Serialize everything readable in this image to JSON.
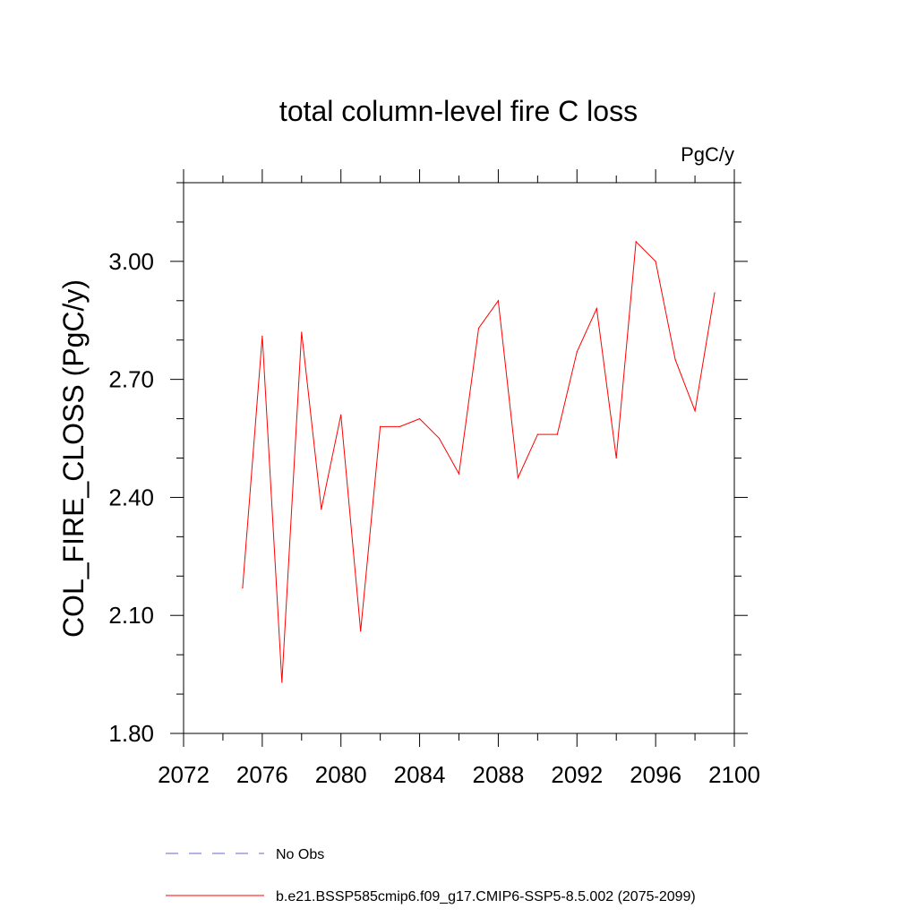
{
  "chart_data": {
    "type": "line",
    "title": "total column-level fire C loss",
    "units_label": "PgC/y",
    "ylabel": "COL_FIRE_CLOSS  (PgC/y)",
    "xlabel": "",
    "xlim": [
      2072,
      2100
    ],
    "ylim": [
      1.8,
      3.2
    ],
    "x_ticks": [
      2072,
      2076,
      2080,
      2084,
      2088,
      2092,
      2096,
      2100
    ],
    "y_ticks": [
      1.8,
      2.1,
      2.4,
      2.7,
      3.0
    ],
    "x_tick_labels": [
      "2072",
      "2076",
      "2080",
      "2084",
      "2088",
      "2092",
      "2096",
      "2100"
    ],
    "y_tick_labels": [
      "1.80",
      "2.10",
      "2.40",
      "2.70",
      "3.00"
    ],
    "x_minor_step": 2,
    "y_minor_step": 0.1,
    "grid": false,
    "legend_position": "bottom",
    "series": [
      {
        "name": "b.e21.BSSP585cmip6.f09_g17.CMIP6-SSP5-8.5.002 (2075-2099)",
        "color": "#ff0000",
        "style": "solid",
        "x": [
          2075,
          2076,
          2077,
          2078,
          2079,
          2080,
          2081,
          2082,
          2083,
          2084,
          2085,
          2086,
          2087,
          2088,
          2089,
          2090,
          2091,
          2092,
          2093,
          2094,
          2095,
          2096,
          2097,
          2098,
          2099
        ],
        "values": [
          2.17,
          2.81,
          1.93,
          2.82,
          2.37,
          2.61,
          2.06,
          2.58,
          2.58,
          2.6,
          2.55,
          2.46,
          2.83,
          2.9,
          2.45,
          2.56,
          2.56,
          2.77,
          2.88,
          2.5,
          3.05,
          3.0,
          2.75,
          2.62,
          2.92
        ]
      }
    ],
    "legend": [
      {
        "label": "No Obs",
        "color": "#6666cc",
        "style": "dashed"
      },
      {
        "label": "b.e21.BSSP585cmip6.f09_g17.CMIP6-SSP5-8.5.002 (2075-2099)",
        "color": "#ff0000",
        "style": "solid"
      }
    ]
  }
}
